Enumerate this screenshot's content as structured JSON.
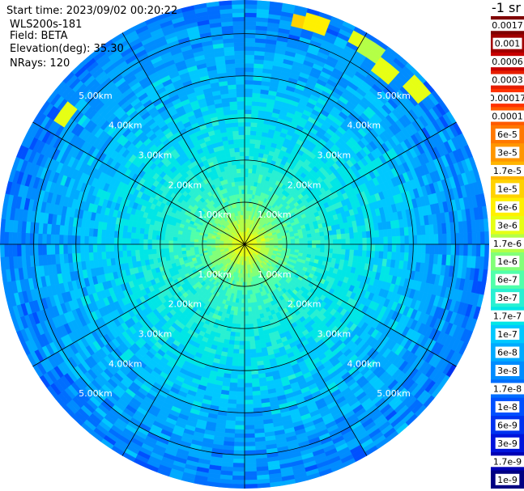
{
  "header": {
    "start_time": "Start time: 2023/09/02 00:20:22",
    "instrument": "WLS200s-181",
    "field": "Field: BETA",
    "elevation": "Elevation(deg): 35.30",
    "nrays": "NRays: 120"
  },
  "colorbar": {
    "title": "-1 sr",
    "labels": [
      "0.0017",
      "0.001",
      "0.0006",
      "0.0003",
      "0.00017",
      "0.0001",
      "6e-5",
      "3e-5",
      "1.7e-5",
      "1e-5",
      "6e-6",
      "3e-6",
      "1.7e-6",
      "1e-6",
      "6e-7",
      "3e-7",
      "1.7e-7",
      "1e-7",
      "6e-8",
      "3e-8",
      "1.7e-8",
      "1e-8",
      "6e-9",
      "3e-9",
      "1.7e-9",
      "1e-9"
    ],
    "colors": [
      "#7f0000",
      "#a00000",
      "#c80000",
      "#e61e00",
      "#ff3200",
      "#ff5a00",
      "#ff7800",
      "#ff9600",
      "#ffb400",
      "#ffd200",
      "#fff000",
      "#e6ff14",
      "#b4ff46",
      "#82ff78",
      "#50ffaa",
      "#28f0d2",
      "#00e6e6",
      "#00c8ff",
      "#00aaff",
      "#008cff",
      "#006eff",
      "#0050ff",
      "#0032f0",
      "#0014dc",
      "#0000b4",
      "#000082"
    ]
  },
  "chart_data": {
    "type": "heatmap",
    "projection": "polar (plan position indicator)",
    "field": "BETA",
    "units": "-1 sr",
    "elevation_deg": 35.3,
    "n_rays": 120,
    "range_rings_km": [
      1.0,
      2.0,
      3.0,
      4.0,
      5.0
    ],
    "range_labels": [
      "1.00km",
      "2.00km",
      "3.00km",
      "4.00km",
      "5.00km"
    ],
    "max_range_km": 5.8,
    "radial_lines_deg": [
      0,
      30,
      60,
      90,
      120,
      150,
      180,
      210,
      240,
      270,
      300,
      330
    ],
    "radial_profile": [
      {
        "range_km": 0.2,
        "level": 11
      },
      {
        "range_km": 0.8,
        "level": 13.5
      },
      {
        "range_km": 1.2,
        "level": 14.5
      },
      {
        "range_km": 2.0,
        "level": 15.5
      },
      {
        "range_km": 3.0,
        "level": 16.5
      },
      {
        "range_km": 4.0,
        "level": 17.5
      },
      {
        "range_km": 5.0,
        "level": 18.5
      },
      {
        "range_km": 5.8,
        "level": 19.5
      }
    ],
    "hotspots": [
      {
        "azimuth_deg": 15,
        "range_km": 5.45,
        "level": 9
      },
      {
        "azimuth_deg": 19,
        "range_km": 5.5,
        "level": 10
      },
      {
        "azimuth_deg": 30,
        "range_km": 5.55,
        "level": 11
      },
      {
        "azimuth_deg": 33,
        "range_km": 5.5,
        "level": 12
      },
      {
        "azimuth_deg": 40,
        "range_km": 5.3,
        "level": 11
      },
      {
        "azimuth_deg": 47,
        "range_km": 5.5,
        "level": 11
      },
      {
        "azimuth_deg": 306,
        "range_km": 5.25,
        "level": 11
      }
    ]
  }
}
